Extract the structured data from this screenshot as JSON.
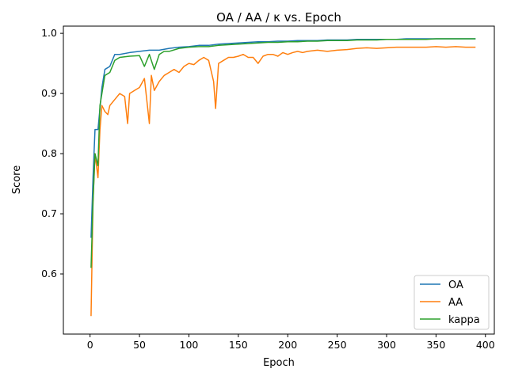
{
  "chart_data": {
    "type": "line",
    "title": "OA / AA / κ vs. Epoch",
    "xlabel": "Epoch",
    "ylabel": "Score",
    "xlim": [
      -27,
      409
    ],
    "ylim": [
      0.5,
      1.012
    ],
    "x_ticks": [
      0,
      50,
      100,
      150,
      200,
      250,
      300,
      350,
      400
    ],
    "y_ticks": [
      0.6,
      0.7,
      0.8,
      0.9,
      1.0
    ],
    "y_tick_labels": [
      "0.6",
      "0.7",
      "0.8",
      "0.9",
      "1.0"
    ],
    "grid": false,
    "legend_position": "lower-right",
    "series": [
      {
        "name": "OA",
        "color": "#1f77b4",
        "x": [
          1,
          3,
          5,
          8,
          12,
          15,
          20,
          25,
          30,
          40,
          50,
          60,
          70,
          80,
          90,
          100,
          110,
          120,
          130,
          140,
          150,
          160,
          170,
          180,
          190,
          200,
          210,
          220,
          230,
          240,
          250,
          260,
          270,
          280,
          290,
          300,
          310,
          320,
          330,
          340,
          350,
          360,
          370,
          380,
          390
        ],
        "values": [
          0.66,
          0.76,
          0.84,
          0.84,
          0.91,
          0.94,
          0.945,
          0.965,
          0.965,
          0.968,
          0.97,
          0.972,
          0.972,
          0.975,
          0.977,
          0.978,
          0.98,
          0.98,
          0.982,
          0.983,
          0.984,
          0.985,
          0.986,
          0.986,
          0.987,
          0.987,
          0.988,
          0.988,
          0.988,
          0.989,
          0.989,
          0.989,
          0.99,
          0.99,
          0.99,
          0.99,
          0.99,
          0.991,
          0.991,
          0.991,
          0.991,
          0.991,
          0.991,
          0.991,
          0.991
        ]
      },
      {
        "name": "AA",
        "color": "#ff7f0e",
        "x": [
          1,
          3,
          5,
          8,
          10,
          12,
          15,
          18,
          20,
          25,
          30,
          35,
          38,
          40,
          45,
          50,
          55,
          60,
          62,
          65,
          70,
          75,
          80,
          85,
          90,
          95,
          100,
          105,
          110,
          115,
          120,
          125,
          127,
          130,
          135,
          140,
          145,
          150,
          155,
          160,
          165,
          170,
          175,
          180,
          185,
          190,
          195,
          200,
          205,
          210,
          215,
          220,
          230,
          240,
          250,
          260,
          270,
          280,
          290,
          300,
          310,
          320,
          330,
          340,
          350,
          360,
          370,
          380,
          390
        ],
        "values": [
          0.53,
          0.72,
          0.8,
          0.76,
          0.84,
          0.88,
          0.87,
          0.865,
          0.88,
          0.89,
          0.9,
          0.895,
          0.85,
          0.9,
          0.905,
          0.91,
          0.925,
          0.85,
          0.93,
          0.905,
          0.92,
          0.93,
          0.935,
          0.94,
          0.935,
          0.945,
          0.95,
          0.948,
          0.955,
          0.96,
          0.955,
          0.92,
          0.875,
          0.95,
          0.955,
          0.96,
          0.96,
          0.962,
          0.965,
          0.96,
          0.96,
          0.95,
          0.962,
          0.965,
          0.965,
          0.962,
          0.968,
          0.965,
          0.968,
          0.97,
          0.968,
          0.97,
          0.972,
          0.97,
          0.972,
          0.973,
          0.975,
          0.976,
          0.975,
          0.976,
          0.977,
          0.977,
          0.977,
          0.977,
          0.978,
          0.977,
          0.978,
          0.977,
          0.977
        ]
      },
      {
        "name": "kappa",
        "color": "#2ca02c",
        "x": [
          1,
          3,
          5,
          8,
          10,
          12,
          15,
          20,
          25,
          30,
          40,
          50,
          55,
          60,
          65,
          70,
          75,
          80,
          90,
          100,
          110,
          120,
          130,
          140,
          150,
          160,
          170,
          180,
          190,
          200,
          210,
          220,
          230,
          240,
          250,
          260,
          270,
          280,
          290,
          300,
          310,
          320,
          330,
          340,
          350,
          360,
          370,
          380,
          390
        ],
        "values": [
          0.61,
          0.72,
          0.8,
          0.78,
          0.88,
          0.9,
          0.93,
          0.935,
          0.955,
          0.96,
          0.962,
          0.963,
          0.945,
          0.965,
          0.94,
          0.965,
          0.97,
          0.97,
          0.975,
          0.977,
          0.978,
          0.978,
          0.98,
          0.981,
          0.982,
          0.983,
          0.984,
          0.985,
          0.985,
          0.986,
          0.986,
          0.987,
          0.987,
          0.988,
          0.988,
          0.988,
          0.989,
          0.989,
          0.989,
          0.99,
          0.99,
          0.99,
          0.99,
          0.99,
          0.991,
          0.991,
          0.991,
          0.991,
          0.991
        ]
      }
    ]
  }
}
